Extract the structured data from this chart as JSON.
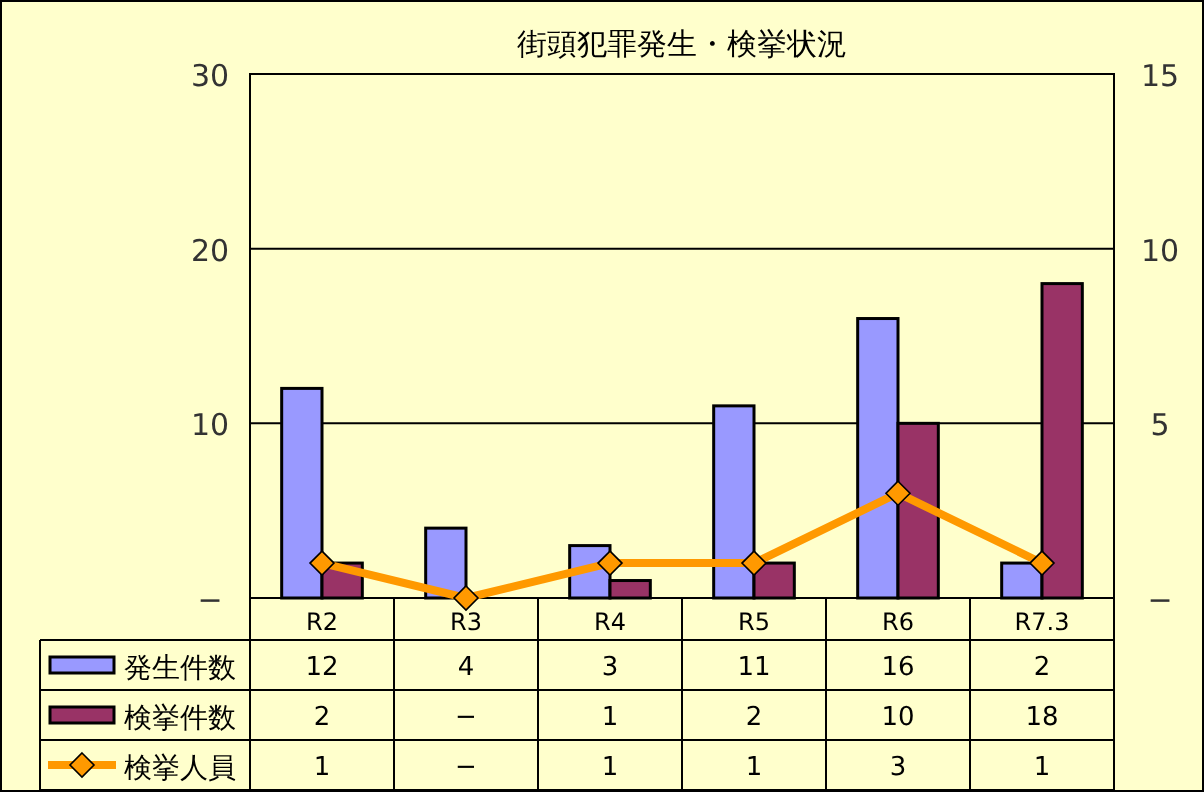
{
  "chart_data": {
    "type": "bar",
    "title": "街頭犯罪発生・検挙状況",
    "categories": [
      "R2",
      "R3",
      "R4",
      "R5",
      "R6",
      "R7.3"
    ],
    "series": [
      {
        "name": "発生件数",
        "color": "#9999ff",
        "values": [
          12,
          4,
          3,
          11,
          16,
          2
        ],
        "value_labels": [
          "12",
          "4",
          "3",
          "11",
          "16",
          "2"
        ]
      },
      {
        "name": "検挙件数",
        "color": "#993366",
        "values": [
          2,
          0,
          1,
          2,
          10,
          18
        ],
        "value_labels": [
          "2",
          "−",
          "1",
          "2",
          "10",
          "18"
        ]
      },
      {
        "name": "検挙人員",
        "type": "line",
        "axis": "y2",
        "color": "#ff9900",
        "marker": "diamond",
        "values": [
          1,
          0,
          1,
          1,
          3,
          1
        ],
        "value_labels": [
          "1",
          "−",
          "1",
          "1",
          "3",
          "1"
        ]
      }
    ],
    "ylim": [
      0,
      30
    ],
    "yticks": [
      {
        "value": 0,
        "label": "−"
      },
      10,
      20,
      30
    ],
    "y2lim": [
      0,
      15
    ],
    "y2ticks": [
      {
        "value": 0,
        "label": "−"
      },
      5,
      10,
      15
    ],
    "grid": "y",
    "legend": "bottom"
  }
}
